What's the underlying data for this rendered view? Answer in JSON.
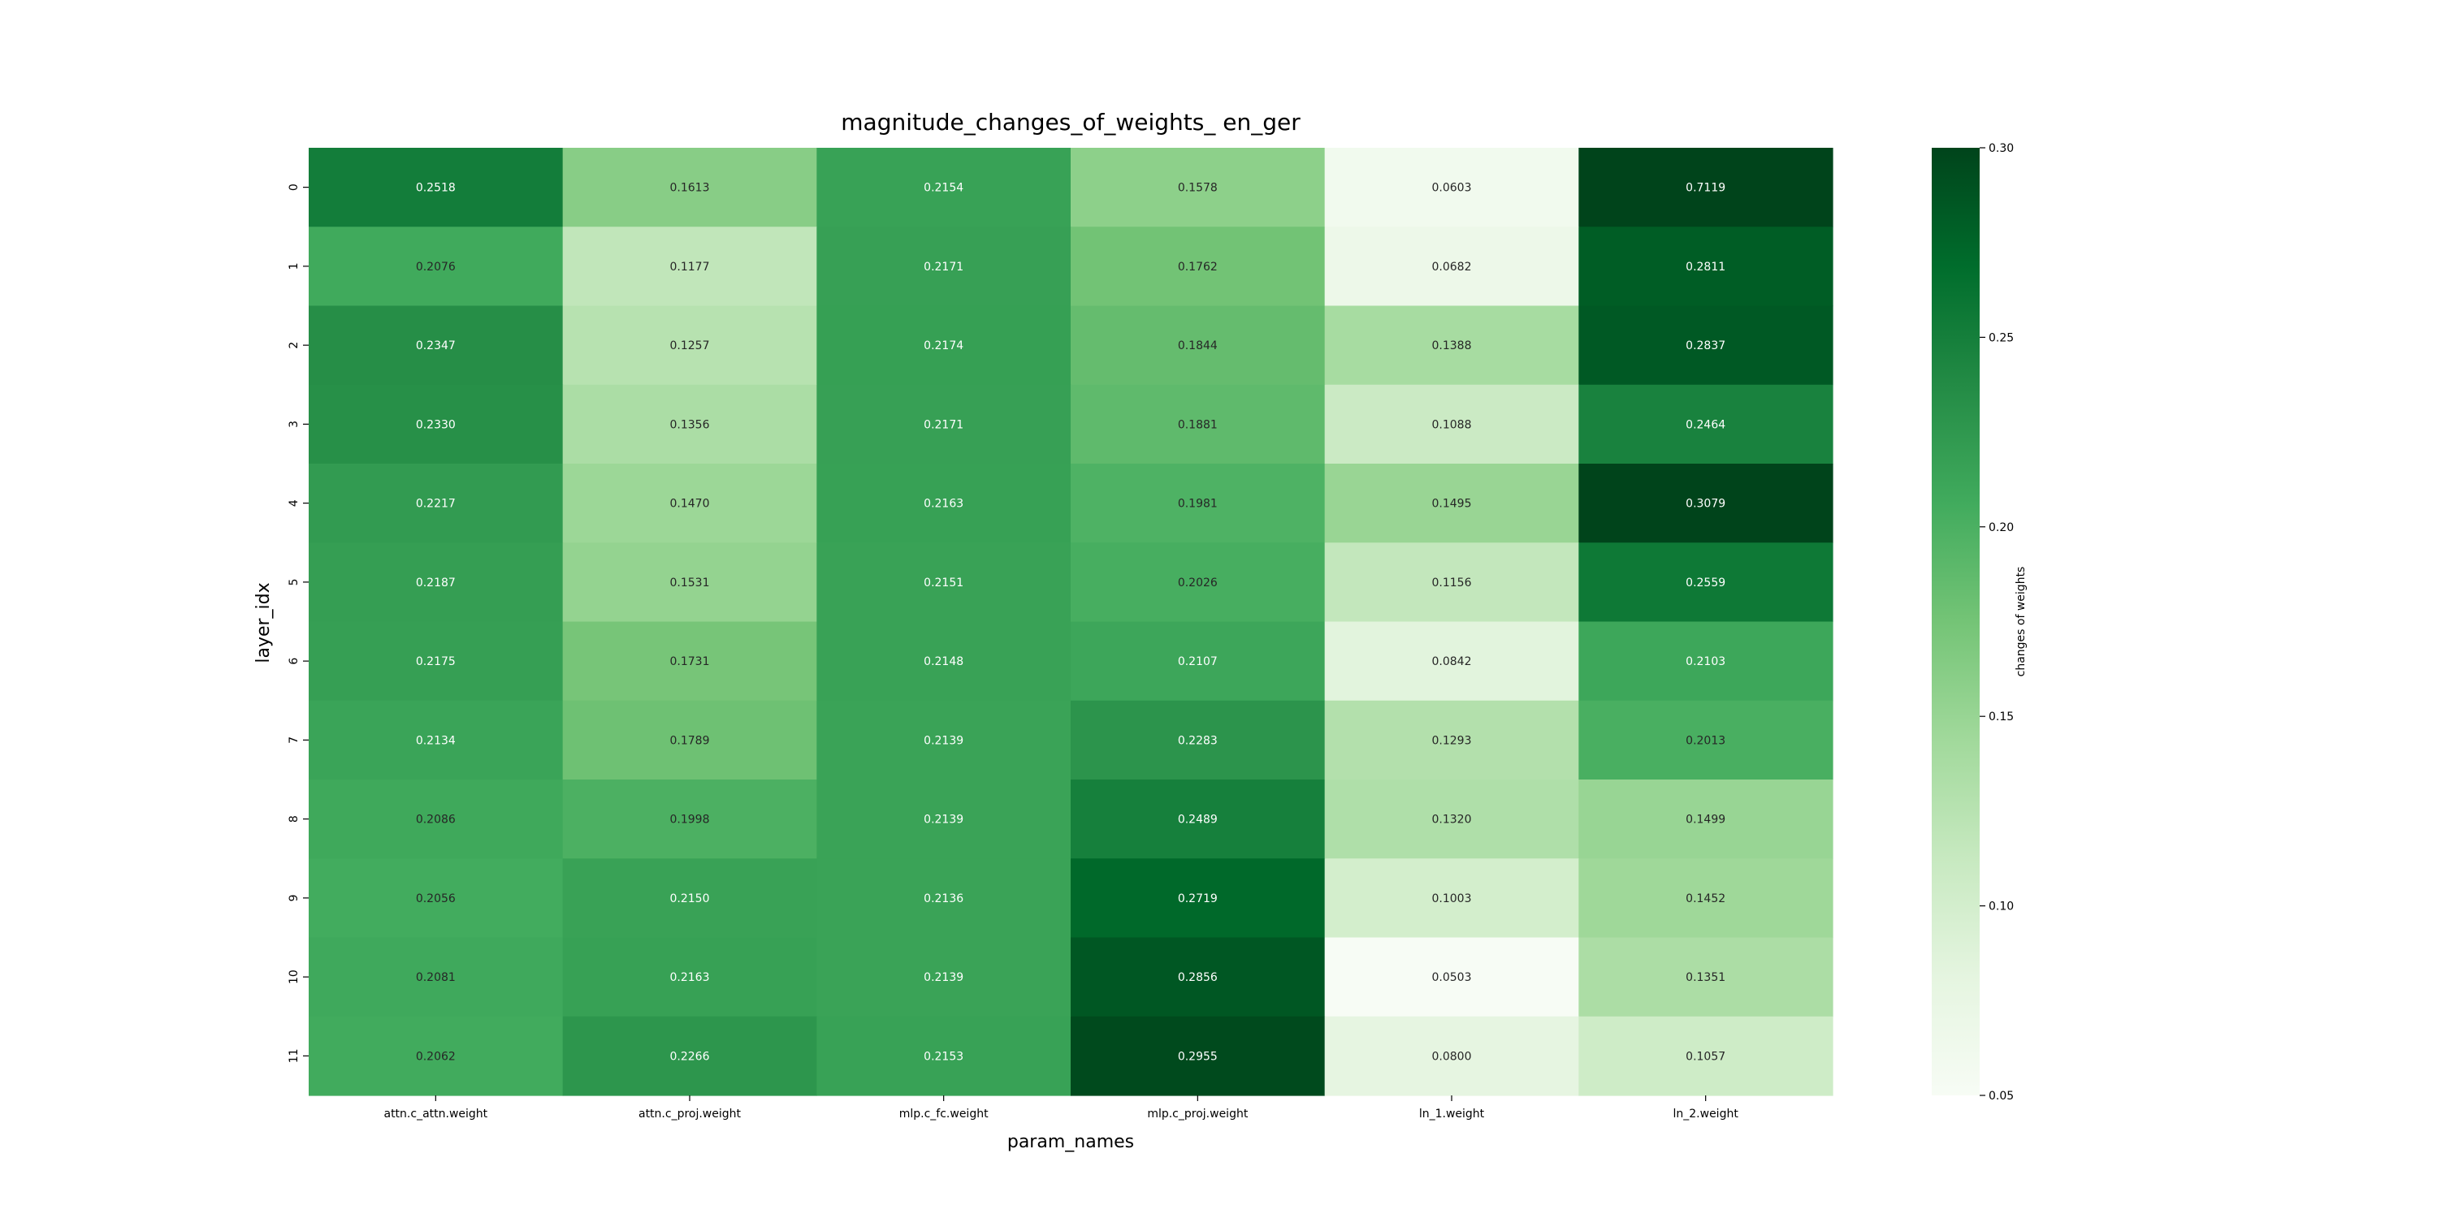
{
  "chart_data": {
    "type": "heatmap",
    "title": "magnitude_changes_of_weights_ en_ger",
    "xlabel": "param_names",
    "ylabel": "layer_idx",
    "x_categories": [
      "attn.c_attn.weight",
      "attn.c_proj.weight",
      "mlp.c_fc.weight",
      "mlp.c_proj.weight",
      "ln_1.weight",
      "ln_2.weight"
    ],
    "y_categories": [
      "0",
      "1",
      "2",
      "3",
      "4",
      "5",
      "6",
      "7",
      "8",
      "9",
      "10",
      "11"
    ],
    "values": [
      [
        0.2518,
        0.1613,
        0.2154,
        0.1578,
        0.0603,
        0.7119
      ],
      [
        0.2076,
        0.1177,
        0.2171,
        0.1762,
        0.0682,
        0.2811
      ],
      [
        0.2347,
        0.1257,
        0.2174,
        0.1844,
        0.1388,
        0.2837
      ],
      [
        0.233,
        0.1356,
        0.2171,
        0.1881,
        0.1088,
        0.2464
      ],
      [
        0.2217,
        0.147,
        0.2163,
        0.1981,
        0.1495,
        0.3079
      ],
      [
        0.2187,
        0.1531,
        0.2151,
        0.2026,
        0.1156,
        0.2559
      ],
      [
        0.2175,
        0.1731,
        0.2148,
        0.2107,
        0.0842,
        0.2103
      ],
      [
        0.2134,
        0.1789,
        0.2139,
        0.2283,
        0.1293,
        0.2013
      ],
      [
        0.2086,
        0.1998,
        0.2139,
        0.2489,
        0.132,
        0.1499
      ],
      [
        0.2056,
        0.215,
        0.2136,
        0.2719,
        0.1003,
        0.1452
      ],
      [
        0.2081,
        0.2163,
        0.2139,
        0.2856,
        0.0503,
        0.1351
      ],
      [
        0.2062,
        0.2266,
        0.2153,
        0.2955,
        0.08,
        0.1057
      ]
    ],
    "value_format_decimals": 4,
    "colormap": "Greens",
    "vmin": 0.05,
    "vmax": 0.3,
    "colorbar": {
      "label": "changes of weights",
      "ticks": [
        "0.05",
        "0.10",
        "0.15",
        "0.20",
        "0.25",
        "0.30"
      ],
      "placement": "right"
    },
    "grid": false
  }
}
